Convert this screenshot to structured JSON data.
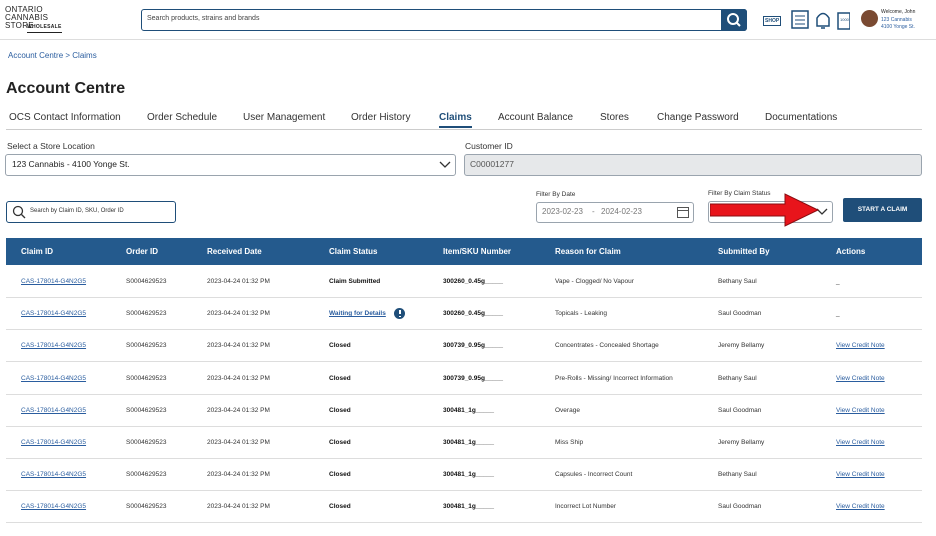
{
  "header": {
    "logo": [
      "ONTARIO",
      "CANNABIS",
      "STORE",
      "WHOLESALE"
    ],
    "search_placeholder": "Search products, strains and brands",
    "shop_icon": "SHOP",
    "cart_icon": "1000",
    "welcome": "Welcome, John",
    "store": "123 Cannabis",
    "address": "4100 Yonge St."
  },
  "breadcrumb": "Account Centre > Claims",
  "page_title": "Account Centre",
  "tabs": {
    "items": [
      "OCS Contact Information",
      "Order Schedule",
      "User Management",
      "Order History",
      "Claims",
      "Account Balance",
      "Stores",
      "Change Password",
      "Documentations"
    ],
    "active": 4
  },
  "form": {
    "store_label": "Select a Store Location",
    "store_value": "123 Cannabis - 4100 Yonge St.",
    "customer_label": "Customer ID",
    "customer_value": "C00001277"
  },
  "filters": {
    "search_placeholder": "Search by Claim ID, SKU, Order ID",
    "date_label": "Filter By Date",
    "date_start": "2023-02-23",
    "date_separator": "-",
    "date_end": "2024-02-23",
    "status_label": "Filter By Claim Status",
    "button": "START A CLAIM"
  },
  "table": {
    "columns": [
      "Claim ID",
      "Order ID",
      "Received Date",
      "Claim Status",
      "Item/SKU Number",
      "Reason for Claim",
      "Submitted By",
      "Actions"
    ],
    "rows": [
      [
        "CAS-178014-G4N2G5",
        "S0004629523",
        "2023-04-24 01:32 PM",
        "Claim Submitted",
        "300260_0.45g_____",
        "Vape - Clogged/ No Vapour",
        "Bethany Saul",
        "_"
      ],
      [
        "CAS-178014-G4N2G5",
        "S0004629523",
        "2023-04-24 01:32 PM",
        "Waiting for Details",
        "300260_0.45g_____",
        "Topicals - Leaking",
        "Saul Goodman",
        "_"
      ],
      [
        "CAS-178014-G4N2G5",
        "S0004629523",
        "2023-04-24 01:32 PM",
        "Closed",
        "300739_0.95g_____",
        "Concentrates - Concealed Shortage",
        "Jeremy Bellamy",
        "View Credit Note"
      ],
      [
        "CAS-178014-G4N2G5",
        "S0004629523",
        "2023-04-24 01:32 PM",
        "Closed",
        "300739_0.95g_____",
        "Pre-Rolls - Missing/ Incorrect Information",
        "Bethany Saul",
        "View Credit Note"
      ],
      [
        "CAS-178014-G4N2G5",
        "S0004629523",
        "2023-04-24 01:32 PM",
        "Closed",
        "300481_1g_____",
        "Overage",
        "Saul Goodman",
        "View Credit Note"
      ],
      [
        "CAS-178014-G4N2G5",
        "S0004629523",
        "2023-04-24 01:32 PM",
        "Closed",
        "300481_1g_____",
        "Miss Ship",
        "Jeremy Bellamy",
        "View Credit Note"
      ],
      [
        "CAS-178014-G4N2G5",
        "S0004629523",
        "2023-04-24 01:32 PM",
        "Closed",
        "300481_1g_____",
        "Capsules - Incorrect Count",
        "Bethany Saul",
        "View Credit Note"
      ],
      [
        "CAS-178014-G4N2G5",
        "S0004629523",
        "2023-04-24 01:32 PM",
        "Closed",
        "300481_1g_____",
        "Incorrect Lot Number",
        "Saul Goodman",
        "View Credit Note"
      ]
    ]
  }
}
